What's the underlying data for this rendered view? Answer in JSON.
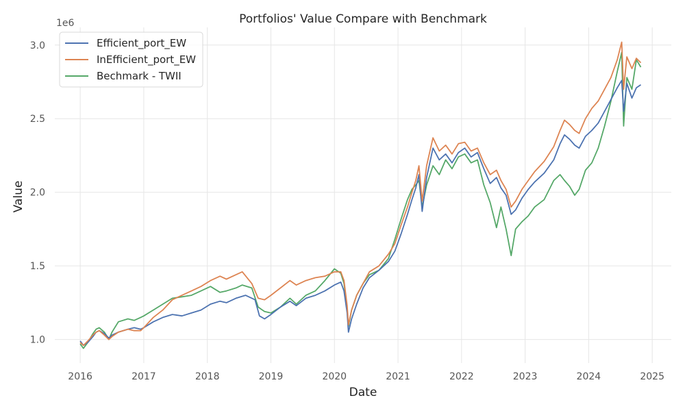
{
  "chart_data": {
    "type": "line",
    "title": "Portfolios' Value Compare with Benchmark",
    "xlabel": "Date",
    "ylabel": "Value",
    "y_offset_label": "1e6",
    "xlim": [
      2015.6,
      2025.3
    ],
    "ylim": [
      0.84,
      3.12
    ],
    "x_ticks": [
      2016,
      2017,
      2018,
      2019,
      2020,
      2021,
      2022,
      2023,
      2024,
      2025
    ],
    "x_tick_labels": [
      "2016",
      "2017",
      "2018",
      "2019",
      "2020",
      "2021",
      "2022",
      "2023",
      "2024",
      "2025"
    ],
    "y_ticks": [
      1.0,
      1.5,
      2.0,
      2.5,
      3.0
    ],
    "y_tick_labels": [
      "1.0",
      "1.5",
      "2.0",
      "2.5",
      "3.0"
    ],
    "grid": true,
    "legend_position": "top-left",
    "x_unit": "year",
    "y_unit": "value (×1e6)",
    "series": [
      {
        "name": "Efficient_port_EW",
        "color": "#4c72b0",
        "points": [
          [
            2016.0,
            0.99
          ],
          [
            2016.05,
            0.96
          ],
          [
            2016.12,
            0.98
          ],
          [
            2016.2,
            1.02
          ],
          [
            2016.25,
            1.05
          ],
          [
            2016.3,
            1.06
          ],
          [
            2016.38,
            1.04
          ],
          [
            2016.45,
            1.01
          ],
          [
            2016.5,
            1.03
          ],
          [
            2016.6,
            1.05
          ],
          [
            2016.75,
            1.07
          ],
          [
            2016.85,
            1.08
          ],
          [
            2016.95,
            1.07
          ],
          [
            2017.0,
            1.08
          ],
          [
            2017.15,
            1.12
          ],
          [
            2017.3,
            1.15
          ],
          [
            2017.45,
            1.17
          ],
          [
            2017.6,
            1.16
          ],
          [
            2017.75,
            1.18
          ],
          [
            2017.9,
            1.2
          ],
          [
            2018.05,
            1.24
          ],
          [
            2018.2,
            1.26
          ],
          [
            2018.3,
            1.25
          ],
          [
            2018.45,
            1.28
          ],
          [
            2018.6,
            1.3
          ],
          [
            2018.75,
            1.27
          ],
          [
            2018.82,
            1.16
          ],
          [
            2018.9,
            1.14
          ],
          [
            2019.0,
            1.17
          ],
          [
            2019.15,
            1.22
          ],
          [
            2019.3,
            1.26
          ],
          [
            2019.4,
            1.23
          ],
          [
            2019.55,
            1.28
          ],
          [
            2019.7,
            1.3
          ],
          [
            2019.85,
            1.33
          ],
          [
            2020.0,
            1.37
          ],
          [
            2020.1,
            1.39
          ],
          [
            2020.15,
            1.33
          ],
          [
            2020.2,
            1.18
          ],
          [
            2020.22,
            1.05
          ],
          [
            2020.27,
            1.14
          ],
          [
            2020.35,
            1.24
          ],
          [
            2020.45,
            1.35
          ],
          [
            2020.55,
            1.42
          ],
          [
            2020.7,
            1.47
          ],
          [
            2020.85,
            1.53
          ],
          [
            2020.95,
            1.6
          ],
          [
            2021.05,
            1.72
          ],
          [
            2021.15,
            1.85
          ],
          [
            2021.22,
            1.95
          ],
          [
            2021.28,
            2.03
          ],
          [
            2021.33,
            2.12
          ],
          [
            2021.38,
            1.87
          ],
          [
            2021.45,
            2.1
          ],
          [
            2021.55,
            2.3
          ],
          [
            2021.65,
            2.22
          ],
          [
            2021.75,
            2.26
          ],
          [
            2021.85,
            2.2
          ],
          [
            2021.95,
            2.27
          ],
          [
            2022.05,
            2.3
          ],
          [
            2022.15,
            2.24
          ],
          [
            2022.25,
            2.27
          ],
          [
            2022.35,
            2.16
          ],
          [
            2022.45,
            2.06
          ],
          [
            2022.55,
            2.1
          ],
          [
            2022.62,
            2.03
          ],
          [
            2022.7,
            1.98
          ],
          [
            2022.78,
            1.85
          ],
          [
            2022.85,
            1.88
          ],
          [
            2022.95,
            1.96
          ],
          [
            2023.05,
            2.02
          ],
          [
            2023.15,
            2.07
          ],
          [
            2023.3,
            2.13
          ],
          [
            2023.45,
            2.22
          ],
          [
            2023.55,
            2.33
          ],
          [
            2023.62,
            2.39
          ],
          [
            2023.7,
            2.36
          ],
          [
            2023.78,
            2.32
          ],
          [
            2023.85,
            2.3
          ],
          [
            2023.95,
            2.38
          ],
          [
            2024.05,
            2.42
          ],
          [
            2024.15,
            2.47
          ],
          [
            2024.25,
            2.55
          ],
          [
            2024.35,
            2.63
          ],
          [
            2024.45,
            2.71
          ],
          [
            2024.52,
            2.76
          ],
          [
            2024.55,
            2.55
          ],
          [
            2024.6,
            2.74
          ],
          [
            2024.68,
            2.64
          ],
          [
            2024.75,
            2.71
          ],
          [
            2024.82,
            2.73
          ]
        ]
      },
      {
        "name": "InEfficient_port_EW",
        "color": "#dd8452",
        "points": [
          [
            2016.0,
            0.98
          ],
          [
            2016.05,
            0.96
          ],
          [
            2016.12,
            0.99
          ],
          [
            2016.2,
            1.03
          ],
          [
            2016.25,
            1.05
          ],
          [
            2016.3,
            1.06
          ],
          [
            2016.38,
            1.03
          ],
          [
            2016.45,
            1.0
          ],
          [
            2016.5,
            1.02
          ],
          [
            2016.6,
            1.05
          ],
          [
            2016.75,
            1.07
          ],
          [
            2016.85,
            1.06
          ],
          [
            2016.95,
            1.06
          ],
          [
            2017.0,
            1.08
          ],
          [
            2017.15,
            1.15
          ],
          [
            2017.3,
            1.2
          ],
          [
            2017.45,
            1.27
          ],
          [
            2017.6,
            1.3
          ],
          [
            2017.75,
            1.33
          ],
          [
            2017.9,
            1.36
          ],
          [
            2018.05,
            1.4
          ],
          [
            2018.2,
            1.43
          ],
          [
            2018.3,
            1.41
          ],
          [
            2018.45,
            1.44
          ],
          [
            2018.55,
            1.46
          ],
          [
            2018.7,
            1.38
          ],
          [
            2018.8,
            1.28
          ],
          [
            2018.9,
            1.27
          ],
          [
            2019.0,
            1.3
          ],
          [
            2019.15,
            1.35
          ],
          [
            2019.3,
            1.4
          ],
          [
            2019.4,
            1.37
          ],
          [
            2019.55,
            1.4
          ],
          [
            2019.7,
            1.42
          ],
          [
            2019.85,
            1.43
          ],
          [
            2020.0,
            1.46
          ],
          [
            2020.1,
            1.46
          ],
          [
            2020.15,
            1.4
          ],
          [
            2020.2,
            1.23
          ],
          [
            2020.22,
            1.1
          ],
          [
            2020.27,
            1.2
          ],
          [
            2020.35,
            1.3
          ],
          [
            2020.45,
            1.38
          ],
          [
            2020.55,
            1.46
          ],
          [
            2020.7,
            1.5
          ],
          [
            2020.85,
            1.58
          ],
          [
            2020.95,
            1.65
          ],
          [
            2021.05,
            1.78
          ],
          [
            2021.15,
            1.9
          ],
          [
            2021.22,
            2.0
          ],
          [
            2021.28,
            2.08
          ],
          [
            2021.33,
            2.18
          ],
          [
            2021.38,
            1.94
          ],
          [
            2021.45,
            2.18
          ],
          [
            2021.55,
            2.37
          ],
          [
            2021.65,
            2.28
          ],
          [
            2021.75,
            2.32
          ],
          [
            2021.85,
            2.26
          ],
          [
            2021.95,
            2.33
          ],
          [
            2022.05,
            2.34
          ],
          [
            2022.15,
            2.28
          ],
          [
            2022.25,
            2.3
          ],
          [
            2022.35,
            2.2
          ],
          [
            2022.45,
            2.12
          ],
          [
            2022.55,
            2.15
          ],
          [
            2022.62,
            2.08
          ],
          [
            2022.7,
            2.02
          ],
          [
            2022.78,
            1.9
          ],
          [
            2022.85,
            1.94
          ],
          [
            2022.95,
            2.02
          ],
          [
            2023.05,
            2.08
          ],
          [
            2023.15,
            2.14
          ],
          [
            2023.3,
            2.21
          ],
          [
            2023.45,
            2.31
          ],
          [
            2023.55,
            2.42
          ],
          [
            2023.62,
            2.49
          ],
          [
            2023.7,
            2.46
          ],
          [
            2023.78,
            2.42
          ],
          [
            2023.85,
            2.4
          ],
          [
            2023.95,
            2.5
          ],
          [
            2024.05,
            2.57
          ],
          [
            2024.15,
            2.62
          ],
          [
            2024.25,
            2.7
          ],
          [
            2024.35,
            2.78
          ],
          [
            2024.45,
            2.9
          ],
          [
            2024.52,
            3.02
          ],
          [
            2024.55,
            2.7
          ],
          [
            2024.6,
            2.92
          ],
          [
            2024.68,
            2.84
          ],
          [
            2024.75,
            2.91
          ],
          [
            2024.82,
            2.88
          ]
        ]
      },
      {
        "name": "Bechmark - TWII",
        "color": "#55a868",
        "points": [
          [
            2016.0,
            0.97
          ],
          [
            2016.05,
            0.94
          ],
          [
            2016.12,
            0.98
          ],
          [
            2016.2,
            1.04
          ],
          [
            2016.25,
            1.07
          ],
          [
            2016.3,
            1.08
          ],
          [
            2016.38,
            1.05
          ],
          [
            2016.45,
            1.0
          ],
          [
            2016.5,
            1.05
          ],
          [
            2016.6,
            1.12
          ],
          [
            2016.75,
            1.14
          ],
          [
            2016.85,
            1.13
          ],
          [
            2016.95,
            1.15
          ],
          [
            2017.0,
            1.16
          ],
          [
            2017.15,
            1.2
          ],
          [
            2017.3,
            1.24
          ],
          [
            2017.45,
            1.28
          ],
          [
            2017.6,
            1.29
          ],
          [
            2017.75,
            1.3
          ],
          [
            2017.9,
            1.33
          ],
          [
            2018.05,
            1.36
          ],
          [
            2018.2,
            1.32
          ],
          [
            2018.3,
            1.33
          ],
          [
            2018.45,
            1.35
          ],
          [
            2018.55,
            1.37
          ],
          [
            2018.7,
            1.35
          ],
          [
            2018.8,
            1.22
          ],
          [
            2018.9,
            1.19
          ],
          [
            2019.0,
            1.18
          ],
          [
            2019.15,
            1.22
          ],
          [
            2019.3,
            1.28
          ],
          [
            2019.4,
            1.24
          ],
          [
            2019.55,
            1.3
          ],
          [
            2019.7,
            1.33
          ],
          [
            2019.85,
            1.4
          ],
          [
            2020.0,
            1.48
          ],
          [
            2020.1,
            1.45
          ],
          [
            2020.15,
            1.38
          ],
          [
            2020.2,
            1.2
          ],
          [
            2020.22,
            1.09
          ],
          [
            2020.27,
            1.2
          ],
          [
            2020.35,
            1.3
          ],
          [
            2020.45,
            1.38
          ],
          [
            2020.55,
            1.44
          ],
          [
            2020.7,
            1.47
          ],
          [
            2020.85,
            1.55
          ],
          [
            2020.95,
            1.68
          ],
          [
            2021.05,
            1.82
          ],
          [
            2021.15,
            1.95
          ],
          [
            2021.22,
            2.02
          ],
          [
            2021.28,
            2.05
          ],
          [
            2021.33,
            2.08
          ],
          [
            2021.38,
            1.9
          ],
          [
            2021.45,
            2.05
          ],
          [
            2021.55,
            2.18
          ],
          [
            2021.65,
            2.12
          ],
          [
            2021.75,
            2.22
          ],
          [
            2021.85,
            2.16
          ],
          [
            2021.95,
            2.24
          ],
          [
            2022.05,
            2.26
          ],
          [
            2022.15,
            2.2
          ],
          [
            2022.25,
            2.22
          ],
          [
            2022.35,
            2.05
          ],
          [
            2022.45,
            1.93
          ],
          [
            2022.55,
            1.76
          ],
          [
            2022.62,
            1.9
          ],
          [
            2022.7,
            1.75
          ],
          [
            2022.78,
            1.57
          ],
          [
            2022.85,
            1.75
          ],
          [
            2022.95,
            1.8
          ],
          [
            2023.05,
            1.84
          ],
          [
            2023.15,
            1.9
          ],
          [
            2023.3,
            1.95
          ],
          [
            2023.45,
            2.08
          ],
          [
            2023.55,
            2.12
          ],
          [
            2023.62,
            2.08
          ],
          [
            2023.7,
            2.04
          ],
          [
            2023.78,
            1.98
          ],
          [
            2023.85,
            2.02
          ],
          [
            2023.95,
            2.15
          ],
          [
            2024.05,
            2.2
          ],
          [
            2024.15,
            2.3
          ],
          [
            2024.25,
            2.45
          ],
          [
            2024.35,
            2.62
          ],
          [
            2024.45,
            2.82
          ],
          [
            2024.52,
            2.95
          ],
          [
            2024.55,
            2.45
          ],
          [
            2024.6,
            2.78
          ],
          [
            2024.68,
            2.7
          ],
          [
            2024.75,
            2.9
          ],
          [
            2024.82,
            2.85
          ]
        ]
      }
    ]
  }
}
